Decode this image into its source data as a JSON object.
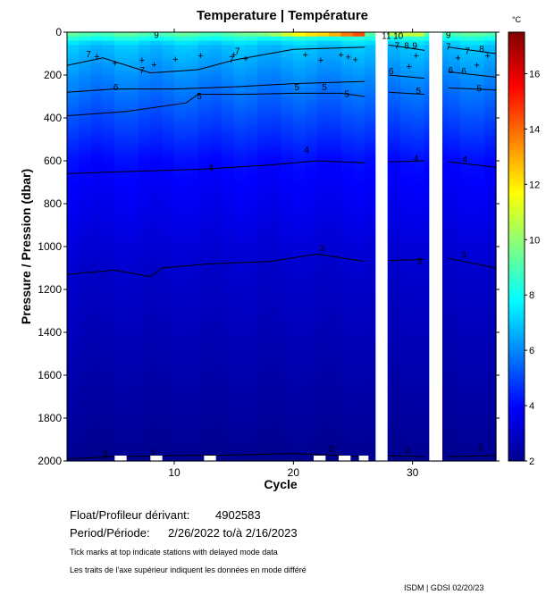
{
  "chart_data": {
    "type": "heatmap",
    "title": "Temperature | Température",
    "xlabel": "Cycle",
    "ylabel": "Pressure / Pression (dbar)",
    "xlim": [
      1,
      37
    ],
    "ylim": [
      2000,
      0
    ],
    "x_ticks": [
      10,
      20,
      30
    ],
    "y_ticks": [
      0,
      200,
      400,
      600,
      800,
      1000,
      1200,
      1400,
      1600,
      1800,
      2000
    ],
    "colorbar": {
      "unit": "°C",
      "range": [
        2,
        17.5
      ],
      "ticks": [
        2,
        4,
        6,
        8,
        10,
        12,
        14,
        16
      ],
      "colors": [
        "#00008f",
        "#0000ff",
        "#0080ff",
        "#00ffff",
        "#80ff80",
        "#ffff00",
        "#ff8000",
        "#ff0000",
        "#800000"
      ]
    },
    "gaps": [
      [
        26.9,
        27.9
      ],
      [
        31.4,
        32.5
      ]
    ],
    "isotherms": [
      {
        "label": "4",
        "points": [
          [
            1,
            660
          ],
          [
            6,
            650
          ],
          [
            12,
            640
          ],
          [
            18,
            620
          ],
          [
            22,
            600
          ],
          [
            26,
            610
          ]
        ],
        "segments": [
          [
            [
              28,
              605
            ],
            [
              31,
              600
            ]
          ],
          [
            [
              33,
              605
            ],
            [
              37,
              630
            ]
          ]
        ]
      },
      {
        "label": "3",
        "points": [
          [
            1,
            1130
          ],
          [
            5,
            1110
          ],
          [
            8,
            1140
          ],
          [
            9,
            1100
          ],
          [
            13,
            1080
          ],
          [
            18,
            1070
          ],
          [
            22,
            1035
          ],
          [
            26,
            1070
          ]
        ],
        "segments": [
          [
            [
              28,
              1065
            ],
            [
              31,
              1060
            ]
          ],
          [
            [
              33,
              1055
            ],
            [
              37,
              1100
            ]
          ]
        ]
      },
      {
        "label": "5",
        "points": [
          [
            1,
            390
          ],
          [
            6,
            370
          ],
          [
            11,
            330
          ],
          [
            12,
            290
          ],
          [
            16,
            290
          ],
          [
            20,
            285
          ],
          [
            24,
            285
          ],
          [
            26,
            300
          ]
        ],
        "segments": [
          [
            [
              28,
              280
            ],
            [
              31,
              290
            ]
          ],
          [
            [
              33,
              260
            ],
            [
              37,
              270
            ]
          ]
        ]
      },
      {
        "label": "6",
        "points": [
          [
            1,
            280
          ],
          [
            5,
            265
          ],
          [
            10,
            265
          ],
          [
            15,
            255
          ],
          [
            20,
            240
          ],
          [
            26,
            230
          ]
        ],
        "segments": [
          [
            [
              28,
              200
            ],
            [
              31,
              215
            ]
          ],
          [
            [
              33,
              185
            ],
            [
              37,
              210
            ]
          ]
        ]
      },
      {
        "label": "7",
        "points": [
          [
            1,
            155
          ],
          [
            4,
            120
          ],
          [
            8,
            190
          ],
          [
            12,
            175
          ],
          [
            15,
            130
          ],
          [
            20,
            80
          ],
          [
            26,
            70
          ]
        ],
        "segments": [
          [
            [
              28,
              60
            ],
            [
              31,
              85
            ]
          ],
          [
            [
              33,
              70
            ],
            [
              37,
              100
            ]
          ]
        ]
      },
      {
        "label": "2",
        "points": [
          [
            1,
            1990
          ],
          [
            5,
            1980
          ],
          [
            10,
            1975
          ],
          [
            15,
            1972
          ],
          [
            20,
            1965
          ],
          [
            26,
            1980
          ]
        ],
        "segments": [
          [
            [
              28,
              1975
            ],
            [
              31,
              1980
            ]
          ],
          [
            [
              33,
              1980
            ],
            [
              37,
              1975
            ]
          ]
        ]
      }
    ],
    "contour_labels": [
      {
        "text": "9",
        "x": 8.5,
        "y": 10
      },
      {
        "text": "7",
        "x": 2.8,
        "y": 100
      },
      {
        "text": "7",
        "x": 7.3,
        "y": 175
      },
      {
        "text": "6",
        "x": 5.1,
        "y": 255
      },
      {
        "text": "7",
        "x": 15.3,
        "y": 85
      },
      {
        "text": "7",
        "x": 14.8,
        "y": 125
      },
      {
        "text": "5",
        "x": 12.1,
        "y": 295
      },
      {
        "text": "5",
        "x": 20.3,
        "y": 255
      },
      {
        "text": "5",
        "x": 22.6,
        "y": 255
      },
      {
        "text": "5",
        "x": 24.5,
        "y": 285
      },
      {
        "text": "4",
        "x": 13.1,
        "y": 630
      },
      {
        "text": "4",
        "x": 21.1,
        "y": 545
      },
      {
        "text": "3",
        "x": 22.4,
        "y": 1005
      },
      {
        "text": "2",
        "x": 4.2,
        "y": 1965
      },
      {
        "text": "2",
        "x": 8.2,
        "y": 1960
      },
      {
        "text": "2",
        "x": 23.2,
        "y": 1940
      },
      {
        "text": "11",
        "x": 27.8,
        "y": 15
      },
      {
        "text": "10",
        "x": 28.8,
        "y": 15
      },
      {
        "text": "7",
        "x": 28.7,
        "y": 60
      },
      {
        "text": "8",
        "x": 29.5,
        "y": 60
      },
      {
        "text": "9",
        "x": 30.2,
        "y": 60
      },
      {
        "text": "6",
        "x": 28.2,
        "y": 180
      },
      {
        "text": "5",
        "x": 30.5,
        "y": 270
      },
      {
        "text": "4",
        "x": 30.3,
        "y": 585
      },
      {
        "text": "3",
        "x": 30.6,
        "y": 1065
      },
      {
        "text": "2",
        "x": 29.6,
        "y": 1945
      },
      {
        "text": "9",
        "x": 33.0,
        "y": 10
      },
      {
        "text": "7",
        "x": 33.0,
        "y": 65
      },
      {
        "text": "7",
        "x": 34.6,
        "y": 85
      },
      {
        "text": "8",
        "x": 35.8,
        "y": 75
      },
      {
        "text": "6",
        "x": 33.2,
        "y": 175
      },
      {
        "text": "6",
        "x": 34.3,
        "y": 180
      },
      {
        "text": "5",
        "x": 35.6,
        "y": 260
      },
      {
        "text": "4",
        "x": 34.4,
        "y": 590
      },
      {
        "text": "3",
        "x": 34.3,
        "y": 1035
      },
      {
        "text": "2",
        "x": 35.7,
        "y": 1935
      }
    ],
    "station_markers": [
      3.5,
      5,
      7.3,
      8.3,
      10.1,
      12.2,
      15.0,
      16.0,
      21.0,
      22.3,
      24.0,
      24.6,
      25.2,
      29.7,
      30.3,
      33.8,
      35.4,
      36.3
    ],
    "delayed_mode_ticks": [
      [
        5,
        6
      ],
      [
        8,
        9
      ],
      [
        12.5,
        13.5
      ],
      [
        21.7,
        22.7
      ],
      [
        23.8,
        24.8
      ],
      [
        25.5,
        26.3
      ]
    ]
  },
  "info": {
    "float_label": "Float/Profileur dérivant:",
    "float_value": "4902583",
    "period_label": "Period/Période:",
    "period_value": "2/26/2022  to/à  2/16/2023",
    "note_en": "Tick marks at top indicate stations with delayed mode data",
    "note_fr": "Les traits de l'axe supérieur indiquent les données en mode différé",
    "credit": "ISDM | GDSI  02/20/23"
  }
}
